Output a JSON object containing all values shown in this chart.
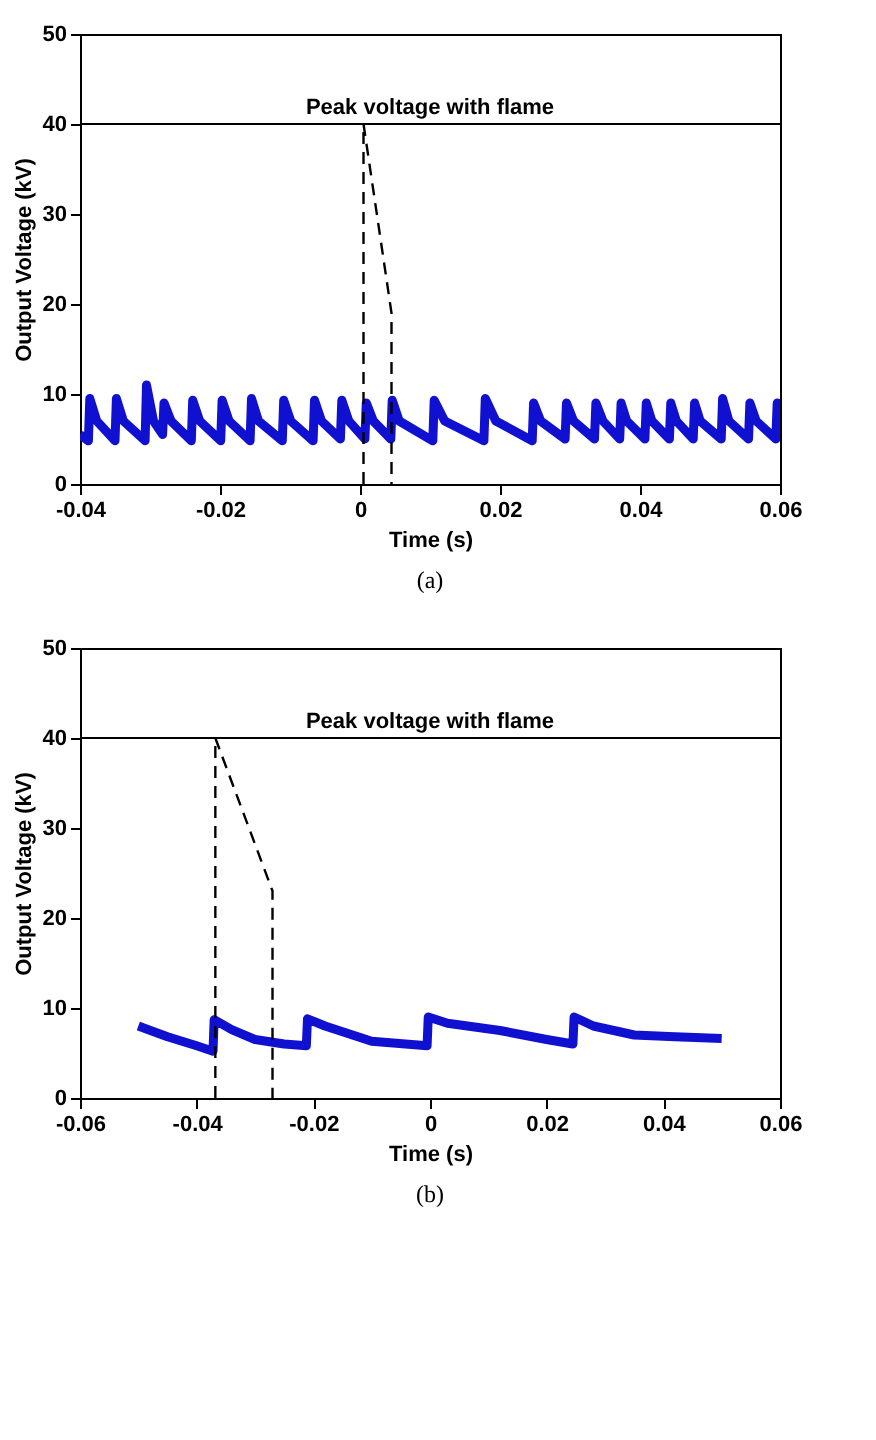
{
  "chart_data": [
    {
      "type": "line",
      "xlabel": "Time (s)",
      "ylabel": "Output Voltage (kV)",
      "xlim": [
        -0.04,
        0.06
      ],
      "ylim": [
        0,
        50
      ],
      "xticks": [
        -0.04,
        -0.02,
        0,
        0.02,
        0.04,
        0.06
      ],
      "yticks": [
        0,
        10,
        20,
        30,
        40,
        50
      ],
      "grid": false,
      "annotations": [
        "(a)"
      ],
      "ref_lines": [
        {
          "axis": "y",
          "value": 40,
          "label": "Peak voltage with flame",
          "color": "#000000",
          "line_style": "solid"
        }
      ],
      "series": [
        {
          "color": "#1010d0",
          "line_style": "solid",
          "x": [
            -0.04,
            -0.0388,
            -0.0386,
            -0.0376,
            -0.035,
            -0.0348,
            -0.0338,
            -0.0307,
            -0.0305,
            -0.0295,
            -0.0282,
            -0.028,
            -0.027,
            -0.0241,
            -0.0239,
            -0.0229,
            -0.0199,
            -0.0197,
            -0.0187,
            -0.0157,
            -0.0155,
            -0.0145,
            -0.0111,
            -0.0109,
            -0.0099,
            -0.0067,
            -0.0065,
            -0.0055,
            -0.0028,
            -0.0026,
            -0.0016,
            0.0007,
            0.0009,
            0.0019,
            0.0044,
            0.0046,
            0.0056,
            0.0104,
            0.0106,
            0.0121,
            0.0177,
            0.0179,
            0.0194,
            0.0246,
            0.0248,
            0.0258,
            0.0293,
            0.0295,
            0.0305,
            0.0335,
            0.0337,
            0.0347,
            0.0371,
            0.0373,
            0.0381,
            0.0407,
            0.0409,
            0.0417,
            0.0442,
            0.0444,
            0.0452,
            0.0476,
            0.0478,
            0.0486,
            0.0516,
            0.0518,
            0.0527,
            0.0555,
            0.0557,
            0.0566,
            0.0594,
            0.0596,
            0.06
          ],
          "values": [
            5.5,
            4.8,
            9.5,
            7,
            4.8,
            9.5,
            7,
            4.8,
            11,
            7,
            5.5,
            9,
            7,
            4.8,
            9.3,
            7,
            4.8,
            9.3,
            7,
            4.8,
            9.5,
            7,
            4.8,
            9.3,
            7,
            4.8,
            9.3,
            7,
            5,
            9.3,
            7,
            5,
            9,
            7,
            5,
            9.3,
            7,
            4.8,
            9.3,
            7,
            4.8,
            9.5,
            7,
            4.8,
            9,
            7,
            5,
            9,
            7,
            5,
            9,
            7,
            5,
            9,
            7,
            5,
            9,
            7,
            5,
            9,
            7,
            5,
            9,
            7,
            5,
            9.5,
            7,
            5,
            9,
            7,
            5,
            9,
            6.5
          ]
        },
        {
          "color": "#000000",
          "line_style": "dashed",
          "x": [
            0.0005,
            0.0005,
            0.0045,
            0.0045
          ],
          "values": [
            0,
            40,
            19,
            0
          ]
        }
      ]
    },
    {
      "type": "line",
      "xlabel": "Time (s)",
      "ylabel": "Output Voltage (kV)",
      "xlim": [
        -0.06,
        0.06
      ],
      "ylim": [
        0,
        50
      ],
      "xticks": [
        -0.06,
        -0.04,
        -0.02,
        0,
        0.02,
        0.04,
        0.06
      ],
      "yticks": [
        0,
        10,
        20,
        30,
        40,
        50
      ],
      "grid": false,
      "annotations": [
        "(b)"
      ],
      "ref_lines": [
        {
          "axis": "y",
          "value": 40,
          "label": "Peak voltage with flame",
          "color": "#000000",
          "line_style": "solid"
        }
      ],
      "series": [
        {
          "color": "#1010d0",
          "line_style": "solid",
          "x": [
            -0.05,
            -0.045,
            -0.04,
            -0.0372,
            -0.037,
            -0.034,
            -0.03,
            -0.025,
            -0.0212,
            -0.021,
            -0.018,
            -0.01,
            -0.0005,
            -0.0003,
            0.003,
            0.012,
            0.02,
            0.0245,
            0.0247,
            0.028,
            0.035,
            0.042,
            0.05
          ],
          "values": [
            8,
            6.8,
            5.8,
            5.2,
            8.7,
            7.6,
            6.5,
            6,
            5.8,
            8.8,
            8,
            6.3,
            5.8,
            9,
            8.3,
            7.5,
            6.5,
            6,
            9,
            8,
            7,
            6.8,
            6.6
          ]
        },
        {
          "color": "#000000",
          "line_style": "dashed",
          "x": [
            -0.0368,
            -0.0368,
            -0.027,
            -0.027
          ],
          "values": [
            0,
            40,
            23,
            0
          ]
        }
      ]
    }
  ]
}
